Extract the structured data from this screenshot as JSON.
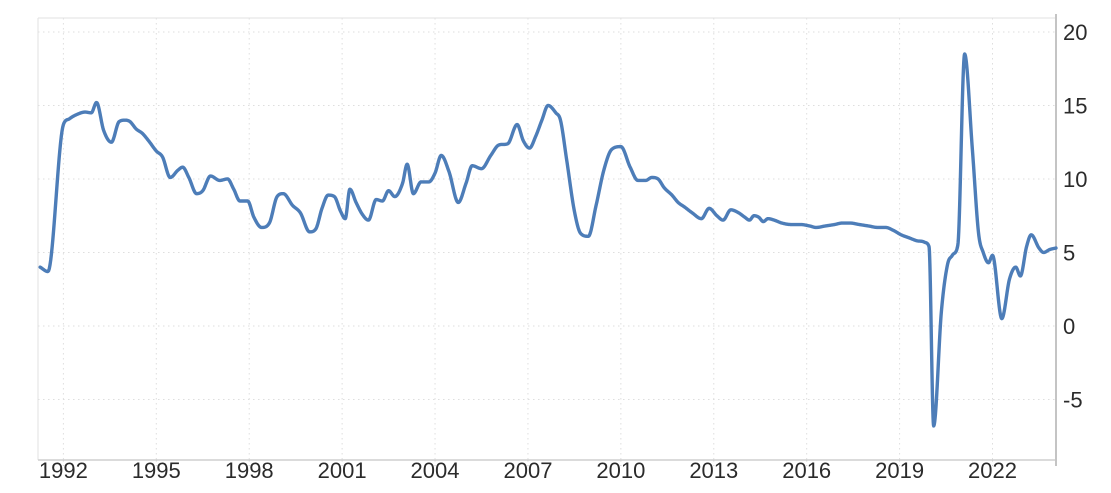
{
  "chart_data": {
    "type": "line",
    "title": "",
    "x_tick_labels": [
      "1992",
      "1995",
      "1998",
      "2001",
      "2004",
      "2007",
      "2010",
      "2013",
      "2016",
      "2019",
      "2022"
    ],
    "x_tick_years": [
      1992,
      1995,
      1998,
      2001,
      2004,
      2007,
      2010,
      2013,
      2016,
      2019,
      2022
    ],
    "y_tick_labels": [
      "20",
      "15",
      "10",
      "5",
      "0",
      "-5"
    ],
    "y_tick_values": [
      20,
      15,
      10,
      5,
      0,
      -5
    ],
    "xlim": [
      1991.18,
      2024.05
    ],
    "ylim": [
      -9.12,
      20.95
    ],
    "grid": "dotted",
    "legend": "none",
    "line_color": "#4d7db8",
    "grid_color": "#dedede",
    "axis_color": "#c4c4c4",
    "label_color": "#2b2b2b",
    "points": [
      [
        1991.25,
        4.0
      ],
      [
        1991.5,
        3.7
      ],
      [
        1992.0,
        13.7
      ],
      [
        1992.2,
        14.1
      ],
      [
        1992.45,
        14.4
      ],
      [
        1992.7,
        14.55
      ],
      [
        1992.9,
        14.5
      ],
      [
        1993.07,
        15.2
      ],
      [
        1993.3,
        13.3
      ],
      [
        1993.55,
        12.5
      ],
      [
        1993.8,
        13.9
      ],
      [
        1994.0,
        14.0
      ],
      [
        1994.15,
        13.9
      ],
      [
        1994.35,
        13.4
      ],
      [
        1994.55,
        13.1
      ],
      [
        1994.75,
        12.6
      ],
      [
        1995.0,
        11.9
      ],
      [
        1995.2,
        11.5
      ],
      [
        1995.45,
        10.1
      ],
      [
        1995.7,
        10.6
      ],
      [
        1995.85,
        10.8
      ],
      [
        1996.05,
        10.1
      ],
      [
        1996.3,
        9.0
      ],
      [
        1996.5,
        9.2
      ],
      [
        1996.75,
        10.2
      ],
      [
        1997.05,
        9.9
      ],
      [
        1997.3,
        10.0
      ],
      [
        1997.5,
        9.3
      ],
      [
        1997.7,
        8.5
      ],
      [
        1997.95,
        8.5
      ],
      [
        1998.15,
        7.4
      ],
      [
        1998.4,
        6.7
      ],
      [
        1998.65,
        7.0
      ],
      [
        1998.9,
        8.8
      ],
      [
        1999.1,
        9.0
      ],
      [
        1999.4,
        8.2
      ],
      [
        1999.65,
        7.7
      ],
      [
        1999.95,
        6.4
      ],
      [
        2000.15,
        6.6
      ],
      [
        2000.35,
        8.0
      ],
      [
        2000.55,
        8.9
      ],
      [
        2000.75,
        8.8
      ],
      [
        2000.95,
        7.8
      ],
      [
        2001.1,
        7.3
      ],
      [
        2001.25,
        9.3
      ],
      [
        2001.45,
        8.4
      ],
      [
        2001.65,
        7.6
      ],
      [
        2001.85,
        7.2
      ],
      [
        2002.1,
        8.6
      ],
      [
        2002.3,
        8.5
      ],
      [
        2002.5,
        9.2
      ],
      [
        2002.7,
        8.8
      ],
      [
        2002.95,
        9.7
      ],
      [
        2003.1,
        11.0
      ],
      [
        2003.3,
        9.0
      ],
      [
        2003.55,
        9.8
      ],
      [
        2003.8,
        9.8
      ],
      [
        2004.0,
        10.4
      ],
      [
        2004.2,
        11.6
      ],
      [
        2004.45,
        10.5
      ],
      [
        2004.75,
        8.4
      ],
      [
        2005.0,
        9.7
      ],
      [
        2005.2,
        10.9
      ],
      [
        2005.5,
        10.7
      ],
      [
        2005.8,
        11.6
      ],
      [
        2006.05,
        12.3
      ],
      [
        2006.35,
        12.4
      ],
      [
        2006.65,
        13.7
      ],
      [
        2006.85,
        12.6
      ],
      [
        2007.05,
        12.1
      ],
      [
        2007.25,
        12.9
      ],
      [
        2007.45,
        14.0
      ],
      [
        2007.65,
        15.0
      ],
      [
        2007.9,
        14.5
      ],
      [
        2008.05,
        14.0
      ],
      [
        2008.25,
        11.3
      ],
      [
        2008.5,
        7.8
      ],
      [
        2008.7,
        6.3
      ],
      [
        2008.95,
        6.1
      ],
      [
        2009.2,
        8.2
      ],
      [
        2009.45,
        10.6
      ],
      [
        2009.7,
        12.0
      ],
      [
        2010.0,
        12.2
      ],
      [
        2010.3,
        10.8
      ],
      [
        2010.55,
        9.9
      ],
      [
        2010.8,
        9.9
      ],
      [
        2011.0,
        10.1
      ],
      [
        2011.2,
        10.0
      ],
      [
        2011.4,
        9.4
      ],
      [
        2011.65,
        8.9
      ],
      [
        2011.85,
        8.4
      ],
      [
        2012.05,
        8.1
      ],
      [
        2012.3,
        7.7
      ],
      [
        2012.6,
        7.3
      ],
      [
        2012.85,
        8.0
      ],
      [
        2013.1,
        7.5
      ],
      [
        2013.3,
        7.2
      ],
      [
        2013.55,
        7.9
      ],
      [
        2013.8,
        7.7
      ],
      [
        2014.0,
        7.4
      ],
      [
        2014.15,
        7.2
      ],
      [
        2014.3,
        7.5
      ],
      [
        2014.45,
        7.4
      ],
      [
        2014.6,
        7.1
      ],
      [
        2014.75,
        7.3
      ],
      [
        2014.95,
        7.2
      ],
      [
        2015.2,
        7.0
      ],
      [
        2015.5,
        6.9
      ],
      [
        2015.8,
        6.9
      ],
      [
        2016.1,
        6.8
      ],
      [
        2016.3,
        6.7
      ],
      [
        2016.6,
        6.8
      ],
      [
        2016.9,
        6.9
      ],
      [
        2017.15,
        7.0
      ],
      [
        2017.4,
        7.0
      ],
      [
        2017.7,
        6.9
      ],
      [
        2018.0,
        6.8
      ],
      [
        2018.3,
        6.7
      ],
      [
        2018.55,
        6.7
      ],
      [
        2018.8,
        6.5
      ],
      [
        2019.05,
        6.2
      ],
      [
        2019.3,
        6.0
      ],
      [
        2019.55,
        5.8
      ],
      [
        2019.8,
        5.7
      ],
      [
        2019.95,
        5.4
      ],
      [
        2020.1,
        -6.8
      ],
      [
        2020.35,
        1.0
      ],
      [
        2020.55,
        4.2
      ],
      [
        2020.7,
        4.8
      ],
      [
        2020.88,
        5.5
      ],
      [
        2021.1,
        18.5
      ],
      [
        2021.35,
        12.0
      ],
      [
        2021.55,
        6.3
      ],
      [
        2021.7,
        5.0
      ],
      [
        2021.87,
        4.3
      ],
      [
        2022.0,
        4.8
      ],
      [
        2022.3,
        0.5
      ],
      [
        2022.55,
        3.2
      ],
      [
        2022.75,
        4.0
      ],
      [
        2022.9,
        3.4
      ],
      [
        2023.1,
        5.4
      ],
      [
        2023.25,
        6.2
      ],
      [
        2023.5,
        5.3
      ],
      [
        2023.65,
        5.0
      ],
      [
        2023.85,
        5.2
      ],
      [
        2024.05,
        5.3
      ]
    ]
  }
}
